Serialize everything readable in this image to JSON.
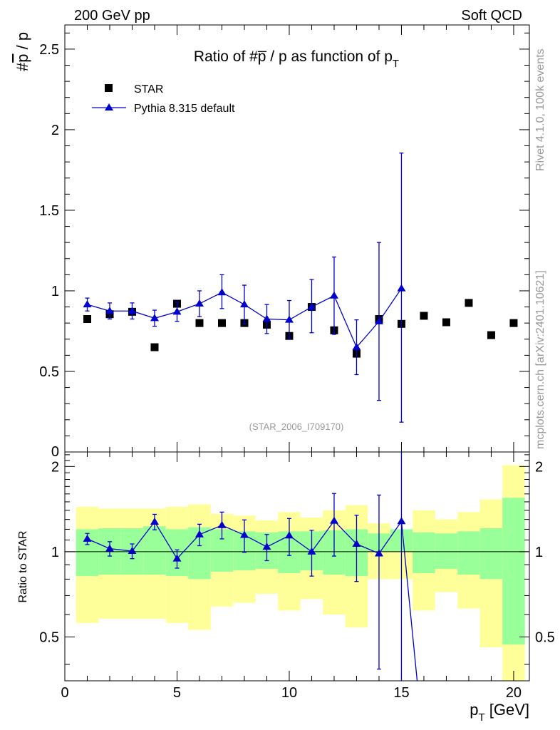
{
  "header": {
    "left": "200 GeV pp",
    "right": "Soft QCD"
  },
  "side_labels": {
    "rivet": "Rivet 4.1.0,  100k events",
    "mcplots": "mcplots.cern.ch [arXiv:2401.10621]"
  },
  "colors": {
    "data": "#000000",
    "mc": "#0000cc",
    "band_inner": "#99ff99",
    "band_outer": "#ffff99",
    "frame": "#000000",
    "grey_text": "#999999"
  },
  "chart_data": [
    {
      "type": "scatter",
      "title": "Ratio of #p̅ / p as function of p",
      "title_sub": "T",
      "ylabel_prefix": "#",
      "ylabel_bar": "p",
      "ylabel_suffix": " / p",
      "ylim": [
        0,
        2.65
      ],
      "xlim": [
        0,
        20.7
      ],
      "yticks": [
        {
          "v": 0.5,
          "label": "0.5"
        },
        {
          "v": 1,
          "label": "1"
        },
        {
          "v": 1.5,
          "label": "1.5"
        },
        {
          "v": 2,
          "label": "2"
        },
        {
          "v": 2.5,
          "label": "2.5"
        }
      ],
      "y_zero_label": "0",
      "watermark": "(STAR_2006_I709170)",
      "legend": {
        "position": "top-left",
        "data_label": "STAR",
        "mc_label": "Pythia 8.315 default"
      },
      "series": [
        {
          "name": "STAR",
          "marker": "square",
          "x": [
            1,
            2,
            3,
            4,
            5,
            6,
            7,
            8,
            9,
            10,
            11,
            12,
            13,
            14,
            15,
            16,
            17,
            18,
            19,
            20
          ],
          "y": [
            0.825,
            0.855,
            0.87,
            0.65,
            0.92,
            0.8,
            0.8,
            0.8,
            0.79,
            0.72,
            0.9,
            0.755,
            0.61,
            0.825,
            0.795,
            0.845,
            0.805,
            0.925,
            0.725,
            0.8
          ]
        },
        {
          "name": "Pythia 8.315 default",
          "marker": "triangle",
          "x": [
            1,
            2,
            3,
            4,
            5,
            6,
            7,
            8,
            9,
            10,
            11,
            12,
            13,
            14,
            15
          ],
          "y": [
            0.915,
            0.875,
            0.875,
            0.83,
            0.87,
            0.92,
            0.99,
            0.915,
            0.825,
            0.82,
            0.9,
            0.97,
            0.65,
            0.81,
            1.015
          ],
          "err_lo": [
            0.04,
            0.05,
            0.05,
            0.05,
            0.06,
            0.08,
            0.1,
            0.12,
            0.09,
            0.12,
            0.16,
            0.24,
            0.17,
            0.49,
            0.83
          ],
          "err_hi": [
            0.04,
            0.05,
            0.05,
            0.05,
            0.06,
            0.08,
            0.11,
            0.12,
            0.09,
            0.12,
            0.17,
            0.24,
            0.17,
            0.49,
            0.84
          ]
        }
      ]
    },
    {
      "type": "scatter",
      "ylabel": "Ratio to STAR",
      "xlabel": "p",
      "xlabel_sub": "T",
      "xlabel_unit": " [GeV]",
      "ylim": [
        0.35,
        2.25
      ],
      "xlim": [
        0,
        20.7
      ],
      "yscale": "log",
      "yticks": [
        {
          "v": 0.5,
          "label": "0.5"
        },
        {
          "v": 1,
          "label": "1"
        },
        {
          "v": 2,
          "label": "2"
        }
      ],
      "xticks": [
        {
          "v": 0,
          "label": "0"
        },
        {
          "v": 5,
          "label": "5"
        },
        {
          "v": 10,
          "label": "10"
        },
        {
          "v": 15,
          "label": "15"
        },
        {
          "v": 20,
          "label": "20"
        }
      ],
      "bands": {
        "x_lo": [
          0.5,
          1.5,
          2.5,
          3.5,
          4.5,
          5.5,
          6.5,
          7.5,
          8.5,
          9.5,
          10.5,
          11.5,
          12.5,
          13.5,
          14.5,
          15.5,
          16.5,
          17.5,
          18.5,
          19.5
        ],
        "x_hi": [
          1.5,
          2.5,
          3.5,
          4.5,
          5.5,
          6.5,
          7.5,
          8.5,
          9.5,
          10.5,
          11.5,
          12.5,
          13.5,
          14.5,
          15.5,
          16.5,
          17.5,
          18.5,
          19.5,
          20.5
        ],
        "inner_lo": [
          0.82,
          0.83,
          0.83,
          0.83,
          0.82,
          0.8,
          0.85,
          0.86,
          0.87,
          0.84,
          0.86,
          0.83,
          0.82,
          1.0,
          1.0,
          0.84,
          0.87,
          0.83,
          0.8,
          0.47
        ],
        "inner_hi": [
          1.2,
          1.21,
          1.21,
          1.23,
          1.2,
          1.22,
          1.2,
          1.18,
          1.17,
          1.18,
          1.18,
          1.19,
          1.2,
          1.16,
          1.2,
          1.17,
          1.16,
          1.18,
          1.21,
          1.55
        ],
        "outer_lo": [
          0.56,
          0.58,
          0.58,
          0.58,
          0.56,
          0.53,
          0.64,
          0.66,
          0.71,
          0.62,
          0.68,
          0.6,
          0.54,
          0.8,
          0.8,
          0.62,
          0.72,
          0.63,
          0.46,
          0.32
        ],
        "outer_hi": [
          1.44,
          1.42,
          1.42,
          1.42,
          1.44,
          1.47,
          1.36,
          1.34,
          1.29,
          1.38,
          1.32,
          1.4,
          1.46,
          1.26,
          1.2,
          1.4,
          1.3,
          1.38,
          1.53,
          2.02
        ]
      },
      "series": [
        {
          "name": "Pythia 8.315 default / STAR",
          "x": [
            1,
            2,
            3,
            4,
            5,
            6,
            7,
            8,
            9,
            10,
            11,
            12,
            13,
            14,
            15
          ],
          "y": [
            1.11,
            1.025,
            1.005,
            1.275,
            0.945,
            1.15,
            1.24,
            1.145,
            1.04,
            1.14,
            1.0,
            1.285,
            1.065,
            0.985,
            1.28
          ],
          "err_lo": [
            0.05,
            0.06,
            0.06,
            0.08,
            0.07,
            0.1,
            0.13,
            0.15,
            0.11,
            0.17,
            0.18,
            0.32,
            0.28,
            0.6,
            1.0
          ],
          "err_hi": [
            0.05,
            0.06,
            0.06,
            0.08,
            0.07,
            0.1,
            0.14,
            0.15,
            0.11,
            0.17,
            0.19,
            0.32,
            0.28,
            0.6,
            1.05
          ],
          "tail_x": 15.7
        }
      ]
    }
  ]
}
